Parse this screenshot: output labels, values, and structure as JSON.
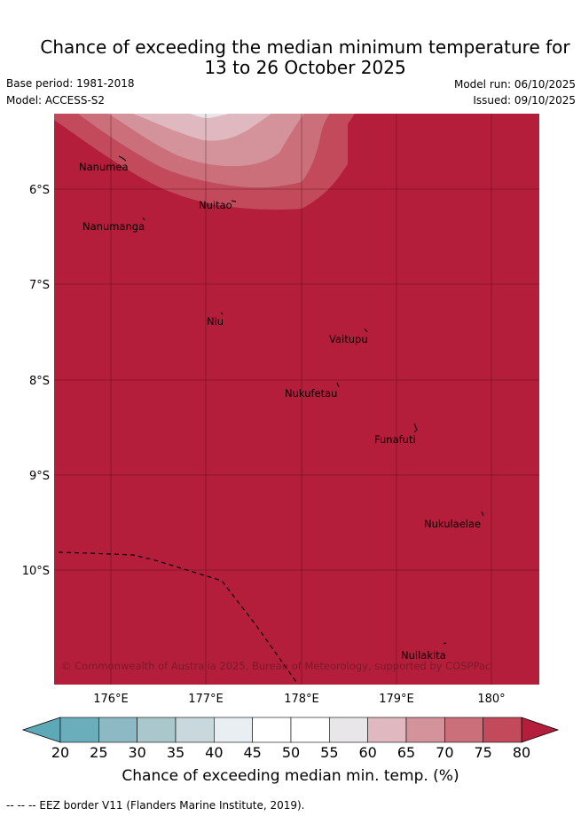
{
  "title": {
    "line1": "Chance of exceeding the median minimum temperature for",
    "line2": "13 to 26 October 2025"
  },
  "meta": {
    "base_period": "Base period: 1981-2018",
    "model": "Model: ACCESS-S2",
    "model_run": "Model run: 06/10/2025",
    "issued": "Issued: 09/10/2025"
  },
  "map": {
    "lat_ticks": [
      "6°S",
      "7°S",
      "8°S",
      "9°S",
      "10°S"
    ],
    "lon_ticks": [
      "176°E",
      "177°E",
      "178°E",
      "179°E",
      "180°"
    ],
    "places": [
      {
        "name": "Nanumea",
        "lon": 176.1,
        "lat": -5.68
      },
      {
        "name": "Nuitao",
        "lon": 177.3,
        "lat": -6.11
      },
      {
        "name": "Nanumanga",
        "lon": 176.32,
        "lat": -6.3
      },
      {
        "name": "Niu",
        "lon": 177.15,
        "lat": -7.3
      },
      {
        "name": "Vaitupu",
        "lon": 178.68,
        "lat": -7.48
      },
      {
        "name": "Nukufetau",
        "lon": 178.38,
        "lat": -8.03
      },
      {
        "name": "Funafuti",
        "lon": 179.2,
        "lat": -8.52
      },
      {
        "name": "Nukulaelae",
        "lon": 179.83,
        "lat": -9.38
      },
      {
        "name": "Nuilakita",
        "lon": 179.5,
        "lat": -10.77
      }
    ],
    "copyright": "© Commonwealth of Australia 2025, Bureau of Meteorology, supported by COSPPac"
  },
  "colorbar": {
    "ticks": [
      "20",
      "25",
      "30",
      "35",
      "40",
      "45",
      "50",
      "55",
      "60",
      "65",
      "70",
      "75",
      "80"
    ],
    "colors": [
      "#6aaebb",
      "#8cb9c4",
      "#aac7cb",
      "#c8d8dc",
      "#e8eef1",
      "#ffffff",
      "#ffffff",
      "#e8e6e9",
      "#dfb9bf",
      "#d4939a",
      "#cb6f7b",
      "#c24a5b"
    ],
    "under_color": "#5ea9b8",
    "over_color": "#b41e3a",
    "label": "Chance of exceeding median min. temp. (%)"
  },
  "footer": "-- -- -- EEZ border V11 (Flanders Marine Institute, 2019)."
}
